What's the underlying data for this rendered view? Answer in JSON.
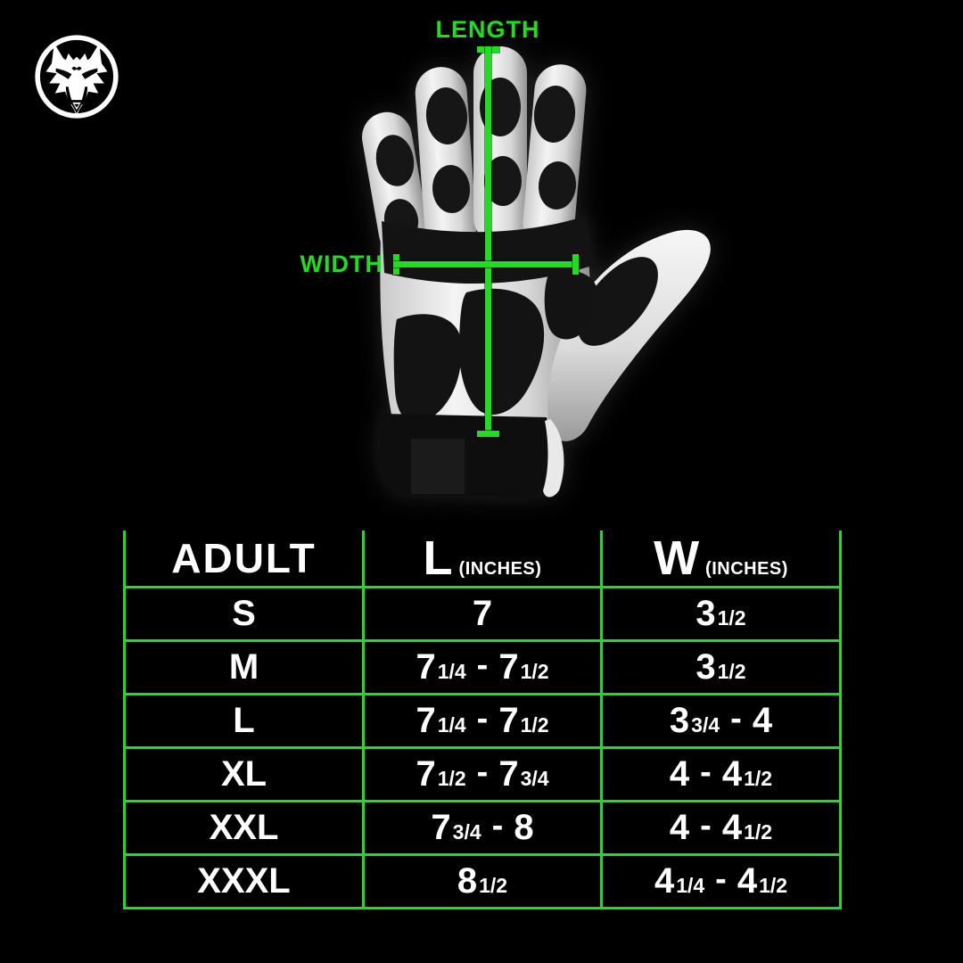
{
  "logo": {
    "icon": "wolf-head-icon"
  },
  "diagram": {
    "length_label": "LENGTH",
    "width_label": "WIDTH"
  },
  "chart_data": {
    "type": "table",
    "columns": [
      {
        "label": "ADULT",
        "unit": ""
      },
      {
        "label": "L",
        "unit": "(INCHES)"
      },
      {
        "label": "W",
        "unit": "(INCHES)"
      }
    ],
    "rows": [
      [
        "S",
        "7",
        "3 1/2"
      ],
      [
        "M",
        "7 1/4 - 7 1/2",
        "3 1/2"
      ],
      [
        "L",
        "7 1/4 - 7 1/2",
        "3 3/4 - 4"
      ],
      [
        "XL",
        "7 1/2 - 7 3/4",
        "4 - 4 1/2"
      ],
      [
        "XXL",
        "7 3/4 - 8",
        "4 - 4 1/2"
      ],
      [
        "XXXL",
        "8 1/2",
        "4 1/4 - 4 1/2"
      ]
    ]
  },
  "colors": {
    "accent_green": "#1FDD1F",
    "background": "#000000",
    "text": "#FFFFFF"
  }
}
